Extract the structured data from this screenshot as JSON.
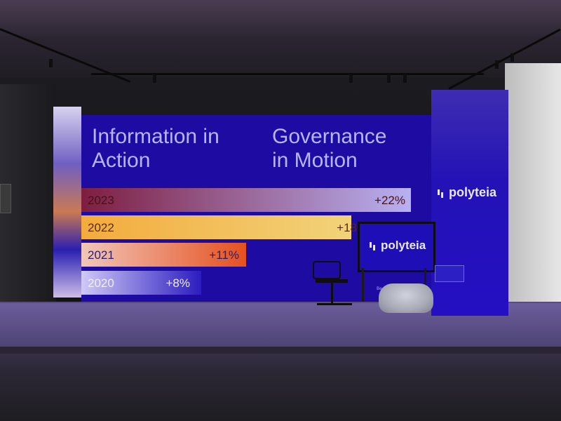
{
  "booth": {
    "headline_left": [
      "Information in",
      "Action"
    ],
    "headline_right": [
      "Governance",
      "in Motion"
    ],
    "bars": [
      {
        "year": "2023",
        "label": "+22%",
        "value": 22,
        "colors": [
          "#7e1e40",
          "#b7b1f2"
        ],
        "text_color": "#4a1018"
      },
      {
        "year": "2022",
        "label": "+18",
        "value": 18,
        "colors": [
          "#f3ab3c",
          "#f2d37a"
        ],
        "text_color": "#5a2a08"
      },
      {
        "year": "2021",
        "label": "+11%",
        "value": 11,
        "colors": [
          "#f1c6b8",
          "#e5501f"
        ],
        "text_color": "#2c1f6b"
      },
      {
        "year": "2020",
        "label": "+8%",
        "value": 8,
        "colors": [
          "#cfc9f6",
          "#2b1cc0"
        ],
        "text_color": "#f0eeff"
      }
    ],
    "tower_logo": "polyteia",
    "monitor_logo": "polyteia",
    "small_label": "Be"
  },
  "colors": {
    "panel": "#1d0ba2",
    "accent_text": "#b8b5ff"
  }
}
